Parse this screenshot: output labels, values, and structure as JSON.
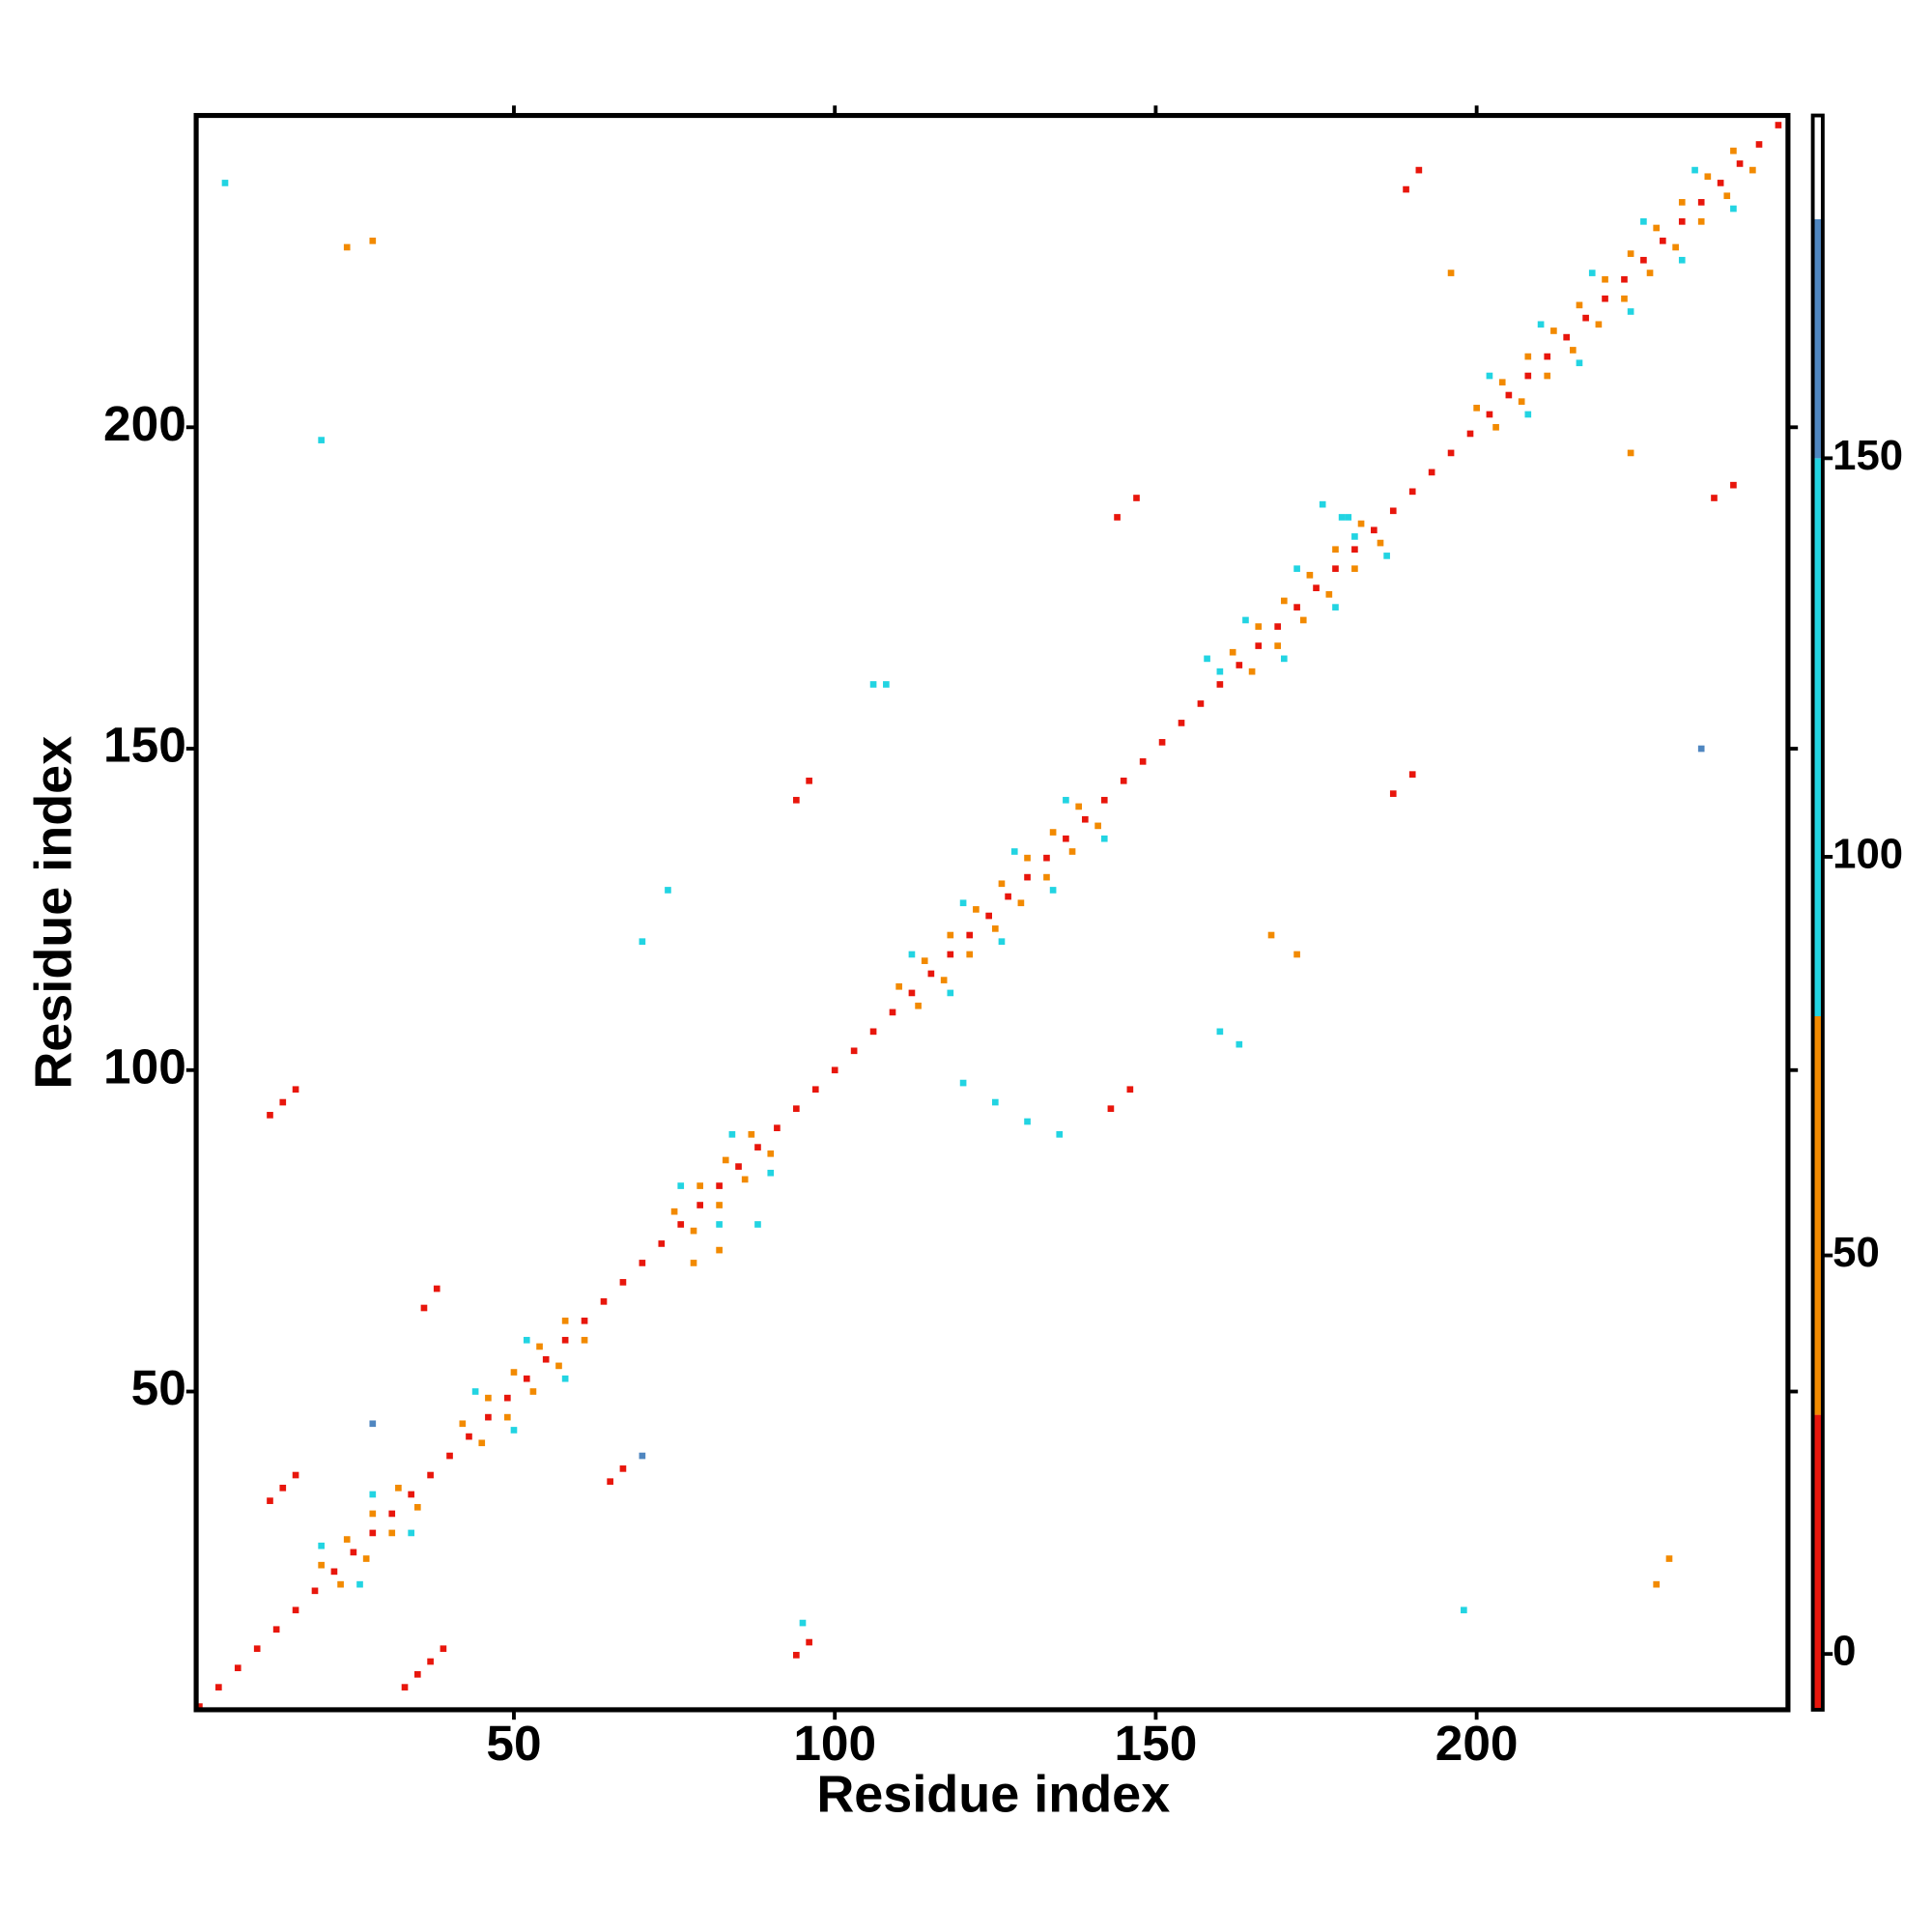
{
  "chart_data": {
    "type": "heatmap",
    "xlabel": "Residue index",
    "ylabel": "Residue index",
    "xlim": [
      0.5,
      248.5
    ],
    "ylim": [
      0.5,
      248.5
    ],
    "xticks": [
      50,
      100,
      150,
      200
    ],
    "yticks": [
      50,
      100,
      150,
      200
    ],
    "colorbar": {
      "ylim": [
        -7,
        193
      ],
      "yticks": [
        0,
        50,
        100,
        150
      ],
      "bands": [
        {
          "from": -7,
          "to": 30,
          "color": "#e8160c"
        },
        {
          "from": 30,
          "to": 80,
          "color": "#f28a00"
        },
        {
          "from": 80,
          "to": 150,
          "color": "#22d4e2"
        },
        {
          "from": 150,
          "to": 180,
          "color": "#4f86c0"
        },
        {
          "from": 180,
          "to": 193,
          "color": "#ffffff"
        }
      ]
    },
    "cells": [
      [
        1,
        1,
        5
      ],
      [
        4,
        4,
        5
      ],
      [
        7,
        7,
        5
      ],
      [
        10,
        10,
        5
      ],
      [
        13,
        13,
        5
      ],
      [
        16,
        16,
        5
      ],
      [
        19,
        19,
        5
      ],
      [
        22,
        22,
        5
      ],
      [
        25,
        25,
        5
      ],
      [
        28,
        28,
        5
      ],
      [
        31,
        31,
        5
      ],
      [
        34,
        34,
        5
      ],
      [
        37,
        37,
        5
      ],
      [
        40,
        40,
        5
      ],
      [
        43,
        43,
        5
      ],
      [
        46,
        46,
        5
      ],
      [
        49,
        49,
        5
      ],
      [
        52,
        52,
        5
      ],
      [
        55,
        55,
        5
      ],
      [
        58,
        58,
        5
      ],
      [
        61,
        61,
        5
      ],
      [
        64,
        64,
        5
      ],
      [
        67,
        67,
        5
      ],
      [
        70,
        70,
        5
      ],
      [
        73,
        73,
        5
      ],
      [
        76,
        76,
        5
      ],
      [
        79,
        79,
        5
      ],
      [
        82,
        82,
        5
      ],
      [
        85,
        85,
        5
      ],
      [
        88,
        88,
        5
      ],
      [
        91,
        91,
        5
      ],
      [
        94,
        94,
        5
      ],
      [
        97,
        97,
        5
      ],
      [
        100,
        100,
        5
      ],
      [
        103,
        103,
        5
      ],
      [
        106,
        106,
        5
      ],
      [
        109,
        109,
        5
      ],
      [
        112,
        112,
        5
      ],
      [
        115,
        115,
        5
      ],
      [
        118,
        118,
        5
      ],
      [
        121,
        121,
        5
      ],
      [
        124,
        124,
        5
      ],
      [
        127,
        127,
        5
      ],
      [
        130,
        130,
        5
      ],
      [
        133,
        133,
        5
      ],
      [
        136,
        136,
        5
      ],
      [
        139,
        139,
        5
      ],
      [
        142,
        142,
        5
      ],
      [
        145,
        145,
        5
      ],
      [
        148,
        148,
        5
      ],
      [
        151,
        151,
        5
      ],
      [
        154,
        154,
        5
      ],
      [
        157,
        157,
        5
      ],
      [
        160,
        160,
        5
      ],
      [
        163,
        163,
        5
      ],
      [
        166,
        166,
        5
      ],
      [
        169,
        169,
        5
      ],
      [
        172,
        172,
        5
      ],
      [
        175,
        175,
        5
      ],
      [
        178,
        178,
        5
      ],
      [
        181,
        181,
        5
      ],
      [
        184,
        184,
        5
      ],
      [
        187,
        187,
        5
      ],
      [
        190,
        190,
        5
      ],
      [
        193,
        193,
        5
      ],
      [
        196,
        196,
        5
      ],
      [
        199,
        199,
        5
      ],
      [
        202,
        202,
        5
      ],
      [
        205,
        205,
        5
      ],
      [
        208,
        208,
        5
      ],
      [
        211,
        211,
        5
      ],
      [
        214,
        214,
        5
      ],
      [
        217,
        217,
        5
      ],
      [
        220,
        220,
        5
      ],
      [
        223,
        223,
        5
      ],
      [
        226,
        226,
        5
      ],
      [
        229,
        229,
        5
      ],
      [
        232,
        232,
        5
      ],
      [
        235,
        235,
        5
      ],
      [
        238,
        238,
        5
      ],
      [
        241,
        241,
        5
      ],
      [
        244,
        244,
        5
      ],
      [
        247,
        247,
        5
      ],
      [
        20,
        23,
        45
      ],
      [
        23,
        20,
        45
      ],
      [
        24,
        27,
        45
      ],
      [
        27,
        24,
        45
      ],
      [
        28,
        31,
        45
      ],
      [
        31,
        28,
        45
      ],
      [
        32,
        35,
        45
      ],
      [
        35,
        32,
        45
      ],
      [
        42,
        45,
        45
      ],
      [
        45,
        42,
        45
      ],
      [
        46,
        49,
        45
      ],
      [
        49,
        46,
        45
      ],
      [
        50,
        53,
        45
      ],
      [
        53,
        50,
        45
      ],
      [
        54,
        57,
        45
      ],
      [
        57,
        54,
        45
      ],
      [
        58,
        61,
        45
      ],
      [
        61,
        58,
        45
      ],
      [
        75,
        78,
        45
      ],
      [
        78,
        75,
        45
      ],
      [
        79,
        82,
        45
      ],
      [
        82,
        79,
        45
      ],
      [
        83,
        86,
        45
      ],
      [
        86,
        83,
        45
      ],
      [
        87,
        90,
        45
      ],
      [
        90,
        87,
        45
      ],
      [
        110,
        113,
        45
      ],
      [
        113,
        110,
        45
      ],
      [
        114,
        117,
        45
      ],
      [
        117,
        114,
        45
      ],
      [
        118,
        121,
        45
      ],
      [
        121,
        118,
        45
      ],
      [
        122,
        125,
        45
      ],
      [
        125,
        122,
        45
      ],
      [
        126,
        129,
        45
      ],
      [
        129,
        126,
        45
      ],
      [
        130,
        133,
        45
      ],
      [
        133,
        130,
        45
      ],
      [
        134,
        137,
        45
      ],
      [
        137,
        134,
        45
      ],
      [
        138,
        141,
        45
      ],
      [
        141,
        138,
        45
      ],
      [
        162,
        165,
        45
      ],
      [
        165,
        162,
        45
      ],
      [
        166,
        169,
        45
      ],
      [
        169,
        166,
        45
      ],
      [
        170,
        173,
        45
      ],
      [
        173,
        170,
        45
      ],
      [
        174,
        177,
        45
      ],
      [
        177,
        174,
        45
      ],
      [
        178,
        181,
        45
      ],
      [
        181,
        178,
        45
      ],
      [
        182,
        185,
        45
      ],
      [
        185,
        182,
        45
      ],
      [
        200,
        203,
        45
      ],
      [
        203,
        200,
        45
      ],
      [
        204,
        207,
        45
      ],
      [
        207,
        204,
        45
      ],
      [
        208,
        211,
        45
      ],
      [
        211,
        208,
        45
      ],
      [
        212,
        215,
        45
      ],
      [
        215,
        212,
        45
      ],
      [
        216,
        219,
        45
      ],
      [
        219,
        216,
        45
      ],
      [
        220,
        223,
        45
      ],
      [
        223,
        220,
        45
      ],
      [
        224,
        227,
        45
      ],
      [
        227,
        224,
        45
      ],
      [
        228,
        231,
        45
      ],
      [
        231,
        228,
        45
      ],
      [
        232,
        235,
        45
      ],
      [
        235,
        232,
        45
      ],
      [
        236,
        239,
        45
      ],
      [
        239,
        236,
        45
      ],
      [
        240,
        243,
        45
      ],
      [
        243,
        240,
        45
      ],
      [
        20,
        26,
        110
      ],
      [
        26,
        20,
        110
      ],
      [
        28,
        34,
        110
      ],
      [
        34,
        28,
        110
      ],
      [
        44,
        50,
        110
      ],
      [
        50,
        44,
        110
      ],
      [
        52,
        58,
        110
      ],
      [
        58,
        52,
        110
      ],
      [
        76,
        82,
        110
      ],
      [
        82,
        76,
        110
      ],
      [
        84,
        90,
        110
      ],
      [
        90,
        84,
        110
      ],
      [
        112,
        118,
        110
      ],
      [
        118,
        112,
        110
      ],
      [
        120,
        126,
        110
      ],
      [
        126,
        120,
        110
      ],
      [
        128,
        134,
        110
      ],
      [
        134,
        128,
        110
      ],
      [
        136,
        142,
        110
      ],
      [
        142,
        136,
        110
      ],
      [
        164,
        170,
        110
      ],
      [
        170,
        164,
        110
      ],
      [
        172,
        178,
        110
      ],
      [
        178,
        172,
        110
      ],
      [
        180,
        186,
        110
      ],
      [
        186,
        180,
        110
      ],
      [
        202,
        208,
        110
      ],
      [
        208,
        202,
        110
      ],
      [
        210,
        216,
        110
      ],
      [
        216,
        210,
        110
      ],
      [
        218,
        224,
        110
      ],
      [
        224,
        218,
        110
      ],
      [
        226,
        232,
        110
      ],
      [
        232,
        226,
        110
      ],
      [
        234,
        240,
        110
      ],
      [
        240,
        234,
        110
      ],
      [
        33,
        4,
        10
      ],
      [
        35,
        6,
        10
      ],
      [
        37,
        8,
        10
      ],
      [
        39,
        10,
        10
      ],
      [
        12,
        33,
        10
      ],
      [
        14,
        35,
        10
      ],
      [
        16,
        37,
        10
      ],
      [
        12,
        93,
        10
      ],
      [
        14,
        95,
        10
      ],
      [
        16,
        97,
        10
      ],
      [
        36,
        63,
        10
      ],
      [
        38,
        66,
        10
      ],
      [
        65,
        36,
        10
      ],
      [
        67,
        38,
        10
      ],
      [
        94,
        9,
        10
      ],
      [
        96,
        11,
        10
      ],
      [
        94,
        142,
        10
      ],
      [
        96,
        145,
        10
      ],
      [
        143,
        94,
        10
      ],
      [
        146,
        97,
        10
      ],
      [
        144,
        186,
        10
      ],
      [
        147,
        189,
        10
      ],
      [
        187,
        143,
        10
      ],
      [
        190,
        146,
        10
      ],
      [
        189,
        237,
        10
      ],
      [
        191,
        240,
        10
      ],
      [
        237,
        189,
        10
      ],
      [
        240,
        191,
        10
      ],
      [
        20,
        198,
        115
      ],
      [
        5,
        238,
        115
      ],
      [
        106,
        160,
        115
      ],
      [
        108,
        160,
        115
      ],
      [
        158,
        164,
        115
      ],
      [
        160,
        162,
        115
      ],
      [
        176,
        188,
        115
      ],
      [
        179,
        186,
        115
      ],
      [
        181,
        183,
        115
      ],
      [
        135,
        90,
        115
      ],
      [
        130,
        92,
        115
      ],
      [
        125,
        95,
        115
      ],
      [
        120,
        98,
        115
      ],
      [
        88,
        76,
        115
      ],
      [
        95,
        14,
        115
      ],
      [
        198,
        16,
        115
      ],
      [
        163,
        104,
        115
      ],
      [
        160,
        106,
        115
      ],
      [
        70,
        120,
        115
      ],
      [
        74,
        128,
        115
      ],
      [
        70,
        40,
        160
      ],
      [
        235,
        150,
        160
      ],
      [
        28,
        45,
        160
      ],
      [
        196,
        224,
        45
      ],
      [
        224,
        196,
        45
      ],
      [
        228,
        20,
        45
      ],
      [
        230,
        24,
        45
      ],
      [
        82,
        72,
        45
      ],
      [
        78,
        70,
        45
      ],
      [
        28,
        229,
        45
      ],
      [
        24,
        228,
        45
      ],
      [
        172,
        118,
        45
      ],
      [
        168,
        121,
        45
      ]
    ]
  }
}
